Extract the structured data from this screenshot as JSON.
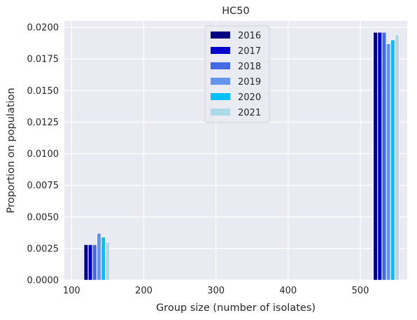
{
  "chart_data": {
    "type": "bar",
    "title": "HC50",
    "xlabel": "Group size (number of isolates)",
    "ylabel": "Proportion on population",
    "xlim": [
      90,
      565
    ],
    "ylim": [
      0,
      0.0205
    ],
    "xticks": [
      100,
      200,
      300,
      400,
      500
    ],
    "xtick_labels": [
      "100",
      "200",
      "300",
      "400",
      "500"
    ],
    "yticks": [
      0,
      0.0025,
      0.005,
      0.0075,
      0.01,
      0.0125,
      0.015,
      0.0175,
      0.02
    ],
    "ytick_labels": [
      "0.0000",
      "0.0025",
      "0.0050",
      "0.0075",
      "0.0100",
      "0.0125",
      "0.0150",
      "0.0175",
      "0.0200"
    ],
    "grid": true,
    "legend_position": "upper-center",
    "bar_width": 5.5,
    "series": [
      {
        "name": "2016",
        "color": "#000080",
        "x": [
          120,
          521
        ],
        "values": [
          0.0028,
          0.0196
        ]
      },
      {
        "name": "2017",
        "color": "#0000CD",
        "x": [
          126,
          527
        ],
        "values": [
          0.0028,
          0.0196
        ]
      },
      {
        "name": "2018",
        "color": "#4169E1",
        "x": [
          132,
          533
        ],
        "values": [
          0.0028,
          0.0196
        ]
      },
      {
        "name": "2019",
        "color": "#6495ED",
        "x": [
          138,
          539
        ],
        "values": [
          0.0037,
          0.0187
        ]
      },
      {
        "name": "2020",
        "color": "#00BFFF",
        "x": [
          144,
          545
        ],
        "values": [
          0.0034,
          0.019
        ]
      },
      {
        "name": "2021",
        "color": "#ADD8E6",
        "x": [
          150,
          551
        ],
        "values": [
          0.003,
          0.0194
        ]
      }
    ]
  }
}
